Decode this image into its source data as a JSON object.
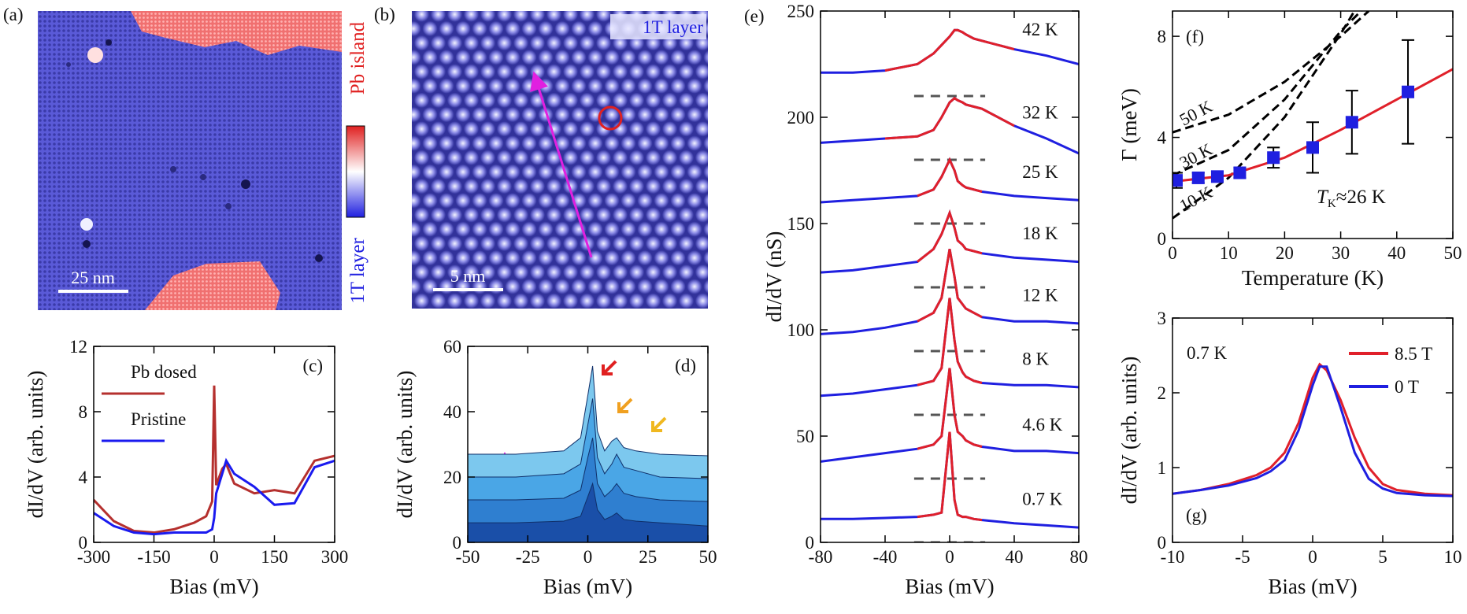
{
  "chart_data": [
    {
      "type": "image",
      "label": "(a)",
      "scale_bar": "25 nm",
      "colorbar": {
        "top": "Pb island",
        "bottom": "1T layer"
      }
    },
    {
      "type": "image",
      "label": "(b)",
      "scale_bar": "5 nm",
      "annotation": "1T layer"
    },
    {
      "type": "line",
      "label": "(c)",
      "xlabel": "Bias (mV)",
      "ylabel": "dI/dV (arb. units)",
      "x": [
        -300,
        -250,
        -200,
        -150,
        -100,
        -50,
        -20,
        -5,
        0,
        5,
        20,
        30,
        50,
        100,
        150,
        200,
        250,
        300
      ],
      "series": [
        {
          "name": "Pb dosed",
          "color": "#b5302e",
          "values": [
            2.6,
            1.3,
            0.7,
            0.6,
            0.8,
            1.2,
            1.6,
            2.5,
            9.6,
            3.5,
            4.5,
            4.8,
            3.6,
            3.0,
            3.2,
            3.0,
            5.0,
            5.3
          ]
        },
        {
          "name": "Pristine",
          "color": "#1a1aef",
          "values": [
            1.8,
            1.0,
            0.6,
            0.5,
            0.6,
            0.6,
            0.6,
            0.8,
            1.5,
            3.0,
            4.2,
            5.0,
            4.2,
            3.4,
            2.3,
            2.4,
            4.6,
            5.0
          ]
        }
      ],
      "xlim": [
        -300,
        300
      ],
      "xticks": [
        -300,
        -150,
        0,
        150,
        300
      ],
      "ylim": [
        0,
        12
      ],
      "yticks": [
        0,
        4,
        8,
        12
      ],
      "legend": "upper left"
    },
    {
      "type": "area",
      "label": "(d)",
      "xlabel": "Bias (mV)",
      "ylabel": "dI/dV (arb. units)",
      "x": [
        -50,
        -30,
        -10,
        -3,
        0,
        2,
        4,
        7,
        10,
        12,
        15,
        20,
        30,
        50
      ],
      "series": [
        {
          "color": "#7cc8ee",
          "values": [
            27,
            27,
            28,
            32,
            45,
            54,
            34,
            28,
            31,
            32,
            29,
            28,
            27,
            26.5
          ]
        },
        {
          "color": "#4aa6e6",
          "values": [
            20,
            20,
            21,
            24,
            36,
            44,
            26,
            21,
            24,
            27,
            23,
            22,
            20,
            19.5
          ]
        },
        {
          "color": "#2f7fd0",
          "values": [
            13,
            13,
            13.5,
            16,
            26,
            32,
            18,
            14,
            16,
            18,
            15,
            14,
            13,
            12.5
          ]
        },
        {
          "color": "#1a4fa8",
          "values": [
            6,
            6,
            6.5,
            8,
            14,
            18,
            10,
            7,
            8,
            9,
            7,
            6.5,
            6,
            5
          ]
        }
      ],
      "xlim": [
        -50,
        50
      ],
      "xticks": [
        -50,
        -25,
        0,
        25,
        50
      ],
      "ylim": [
        0,
        60
      ],
      "yticks": [
        0,
        20,
        40,
        60
      ]
    },
    {
      "type": "line",
      "label": "(e)",
      "xlabel": "Bias (mV)",
      "ylabel": "dI/dV (nS)",
      "x": [
        -80,
        -60,
        -40,
        -20,
        -10,
        -5,
        0,
        3,
        5,
        8,
        10,
        15,
        20,
        40,
        60,
        80
      ],
      "baselines": [
        210,
        180,
        150,
        120,
        90,
        60,
        30,
        0
      ],
      "series": [
        {
          "name": "42 K",
          "color": "#1f1fe0",
          "values": [
            221,
            221,
            222,
            225,
            230,
            234,
            238,
            241,
            241,
            240,
            239,
            237,
            236,
            232,
            229,
            225
          ]
        },
        {
          "name": "32 K",
          "color": "#1f1fe0",
          "values": [
            188,
            189,
            190,
            191,
            194,
            200,
            207,
            209,
            208,
            207,
            206,
            205,
            204,
            196,
            190,
            183
          ]
        },
        {
          "name": "25 K",
          "color": "#1f1fe0",
          "values": [
            160,
            161,
            162,
            163,
            166,
            172,
            180,
            175,
            170,
            168,
            167,
            166,
            165,
            163,
            162,
            161
          ]
        },
        {
          "name": "18 K",
          "color": "#1f1fe0",
          "values": [
            127,
            128,
            130,
            132,
            138,
            145,
            155,
            148,
            142,
            140,
            138,
            137,
            136,
            134,
            133,
            132
          ]
        },
        {
          "name": "12 K",
          "color": "#1f1fe0",
          "values": [
            98,
            99,
            101,
            104,
            108,
            115,
            138,
            125,
            115,
            112,
            110,
            108,
            106,
            104,
            104,
            103
          ]
        },
        {
          "name": "8 K",
          "color": "#1f1fe0",
          "values": [
            69,
            70,
            72,
            74,
            76,
            82,
            115,
            95,
            85,
            80,
            78,
            76,
            75,
            74,
            74,
            73
          ]
        },
        {
          "name": "4.6 K",
          "color": "#1f1fe0",
          "values": [
            38,
            40,
            42,
            44,
            46,
            50,
            82,
            60,
            52,
            50,
            48,
            46,
            45,
            43,
            43,
            42
          ]
        },
        {
          "name": "0.7 K",
          "color": "#1f1fe0",
          "values": [
            11,
            11,
            11.5,
            12,
            13,
            14,
            52,
            20,
            13,
            12,
            12,
            11,
            10.5,
            9,
            8,
            7
          ]
        },
        {
          "color": "#e0202a",
          "values": [
            null,
            null,
            222,
            225,
            230,
            234,
            238,
            241,
            241,
            240,
            239,
            237,
            236,
            232,
            null,
            null
          ]
        },
        {
          "color": "#e0202a",
          "values": [
            null,
            null,
            190,
            191,
            194,
            200,
            207,
            209,
            208,
            207,
            206,
            205,
            204,
            196,
            null,
            null
          ]
        },
        {
          "color": "#e0202a",
          "values": [
            null,
            null,
            null,
            163,
            166,
            172,
            180,
            175,
            170,
            168,
            167,
            166,
            165,
            null,
            null,
            null
          ]
        },
        {
          "color": "#e0202a",
          "values": [
            null,
            null,
            null,
            132,
            138,
            145,
            155,
            148,
            142,
            140,
            138,
            137,
            136,
            null,
            null,
            null
          ]
        },
        {
          "color": "#e0202a",
          "values": [
            null,
            null,
            null,
            104,
            108,
            115,
            138,
            125,
            115,
            112,
            110,
            108,
            106,
            null,
            null,
            null
          ]
        },
        {
          "color": "#e0202a",
          "values": [
            null,
            null,
            null,
            74,
            76,
            82,
            115,
            95,
            85,
            80,
            78,
            76,
            75,
            null,
            null,
            null
          ]
        },
        {
          "color": "#e0202a",
          "values": [
            null,
            null,
            null,
            44,
            46,
            50,
            82,
            60,
            52,
            50,
            48,
            46,
            45,
            null,
            null,
            null
          ]
        },
        {
          "color": "#e0202a",
          "values": [
            null,
            null,
            null,
            12,
            13,
            14,
            52,
            20,
            13,
            12,
            12,
            11,
            10.5,
            null,
            null,
            null
          ]
        }
      ],
      "xlim": [
        -80,
        80
      ],
      "xticks": [
        -80,
        -40,
        0,
        40,
        80
      ],
      "ylim": [
        0,
        250
      ],
      "yticks": [
        0,
        50,
        100,
        150,
        200,
        250
      ]
    },
    {
      "type": "scatter",
      "label": "(f)",
      "xlabel": "Temperature (K)",
      "ylabel": "Γ (meV)",
      "annotation": [
        "T",
        "K",
        "≈26 K"
      ],
      "series": [
        {
          "name": "50 K",
          "color": "#000000",
          "style": "dashed",
          "x": [
            0,
            10,
            20,
            30,
            35
          ],
          "values": [
            4.2,
            4.9,
            6.2,
            8.0,
            9.0
          ]
        },
        {
          "name": "30 K",
          "color": "#000000",
          "style": "dashed",
          "x": [
            0,
            10,
            20,
            30,
            35
          ],
          "values": [
            2.5,
            3.5,
            5.5,
            8.2,
            9.3
          ]
        },
        {
          "name": "10 K",
          "color": "#000000",
          "style": "dashed",
          "x": [
            0,
            10,
            20,
            30,
            33
          ],
          "values": [
            0.8,
            2.4,
            4.8,
            8.1,
            9.2
          ]
        },
        {
          "color": "#e0202a",
          "style": "solid",
          "x": [
            0,
            10,
            20,
            30,
            40,
            50
          ],
          "values": [
            2.25,
            2.5,
            3.2,
            4.3,
            5.5,
            6.7
          ]
        },
        {
          "color": "#1f1fe0",
          "x": [
            0.7,
            4.6,
            8,
            12,
            18,
            25,
            32,
            42
          ],
          "values": [
            2.3,
            2.4,
            2.45,
            2.6,
            3.2,
            3.6,
            4.6,
            5.8
          ],
          "errors": [
            0.3,
            0.2,
            0.2,
            0.2,
            0.4,
            1.0,
            1.25,
            2.05
          ]
        }
      ],
      "xlim": [
        0,
        50
      ],
      "xticks": [
        0,
        10,
        20,
        30,
        40,
        50
      ],
      "ylim": [
        0,
        9
      ],
      "yticks": [
        0,
        4,
        8
      ]
    },
    {
      "type": "line",
      "label": "(g)",
      "xlabel": "Bias (mV)",
      "ylabel": "dI/dV (arb. units)",
      "annotation": "0.7 K",
      "x": [
        -10,
        -8,
        -6,
        -4,
        -3,
        -2,
        -1,
        0,
        0.5,
        1,
        2,
        3,
        4,
        5,
        6,
        8,
        10
      ],
      "series": [
        {
          "name": "8.5 T",
          "color": "#e0202a",
          "values": [
            0.65,
            0.7,
            0.78,
            0.9,
            1.0,
            1.2,
            1.6,
            2.2,
            2.38,
            2.3,
            1.9,
            1.4,
            1.0,
            0.78,
            0.7,
            0.65,
            0.63
          ]
        },
        {
          "name": "0 T",
          "color": "#1f1fe0",
          "values": [
            0.65,
            0.7,
            0.76,
            0.86,
            0.95,
            1.1,
            1.5,
            2.1,
            2.35,
            2.35,
            1.8,
            1.2,
            0.85,
            0.72,
            0.66,
            0.63,
            0.62
          ]
        }
      ],
      "xlim": [
        -10,
        10
      ],
      "xticks": [
        -10,
        -5,
        0,
        5,
        10
      ],
      "ylim": [
        0,
        3
      ],
      "yticks": [
        0,
        1,
        2,
        3
      ],
      "legend": "upper right"
    }
  ]
}
